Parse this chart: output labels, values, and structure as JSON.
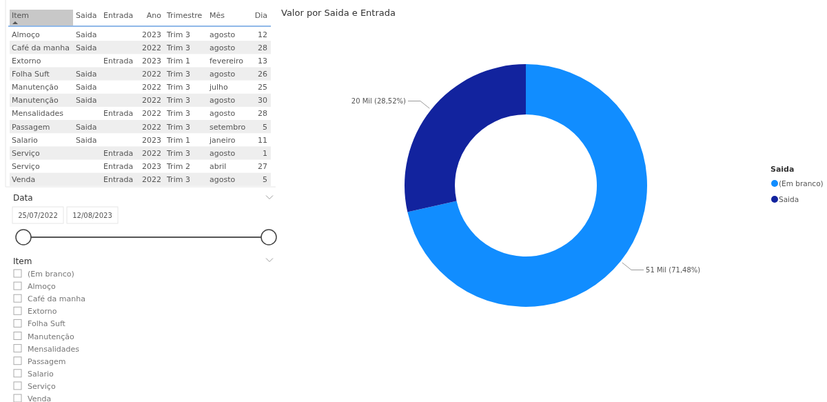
{
  "chart_data": [
    {
      "type": "other",
      "categories": [
        "Item",
        "Saida",
        "Entrada",
        "Ano",
        "Trimestre",
        "Mês",
        "Dia"
      ],
      "cell_labels": [
        [
          "Almoço",
          "Saida",
          null,
          "2023",
          "Trim 3",
          "agosto",
          "12"
        ],
        [
          "Café da manha",
          "Saida",
          null,
          "2022",
          "Trim 3",
          "agosto",
          "28"
        ],
        [
          "Extorno",
          null,
          "Entrada",
          "2023",
          "Trim 1",
          "fevereiro",
          "13"
        ],
        [
          "Folha Suft",
          "Saida",
          null,
          "2022",
          "Trim 3",
          "agosto",
          "26"
        ],
        [
          "Manutenção",
          "Saida",
          null,
          "2022",
          "Trim 3",
          "julho",
          "25"
        ],
        [
          "Manutenção",
          "Saida",
          null,
          "2022",
          "Trim 3",
          "agosto",
          "30"
        ],
        [
          "Mensalidades",
          null,
          "Entrada",
          "2022",
          "Trim 3",
          "agosto",
          "28"
        ],
        [
          "Passagem",
          "Saida",
          null,
          "2022",
          "Trim 3",
          "setembro",
          "5"
        ],
        [
          "Salario",
          "Saida",
          null,
          "2023",
          "Trim 1",
          "janeiro",
          "11"
        ],
        [
          "Serviço",
          null,
          "Entrada",
          "2022",
          "Trim 3",
          "agosto",
          "1"
        ],
        [
          "Serviço",
          null,
          "Entrada",
          "2023",
          "Trim 2",
          "abril",
          "27"
        ],
        [
          "Venda",
          null,
          "Entrada",
          "2022",
          "Trim 3",
          "agosto",
          "5"
        ]
      ]
    },
    {
      "type": "other",
      "title": "Data",
      "annotations": [
        "25/07/2022",
        "12/08/2023"
      ]
    },
    {
      "type": "other",
      "title": "Item",
      "categories": [
        "(Em branco)",
        "Almoço",
        "Café da manha",
        "Extorno",
        "Folha Suft",
        "Manutenção",
        "Mensalidades",
        "Passagem",
        "Salario",
        "Serviço",
        "Venda"
      ]
    },
    {
      "type": "donut",
      "title": "Valor por Saida e Entrada",
      "categories": [
        "(Em branco)",
        "Saida"
      ],
      "values": [
        71.48,
        28.52
      ],
      "colors": [
        "#118dff",
        "#12239e"
      ],
      "value_labels": [
        "51 Mil (71,48%)",
        "20 Mil (28,52%)"
      ],
      "legend": "right",
      "legend_title": "Saida"
    }
  ]
}
